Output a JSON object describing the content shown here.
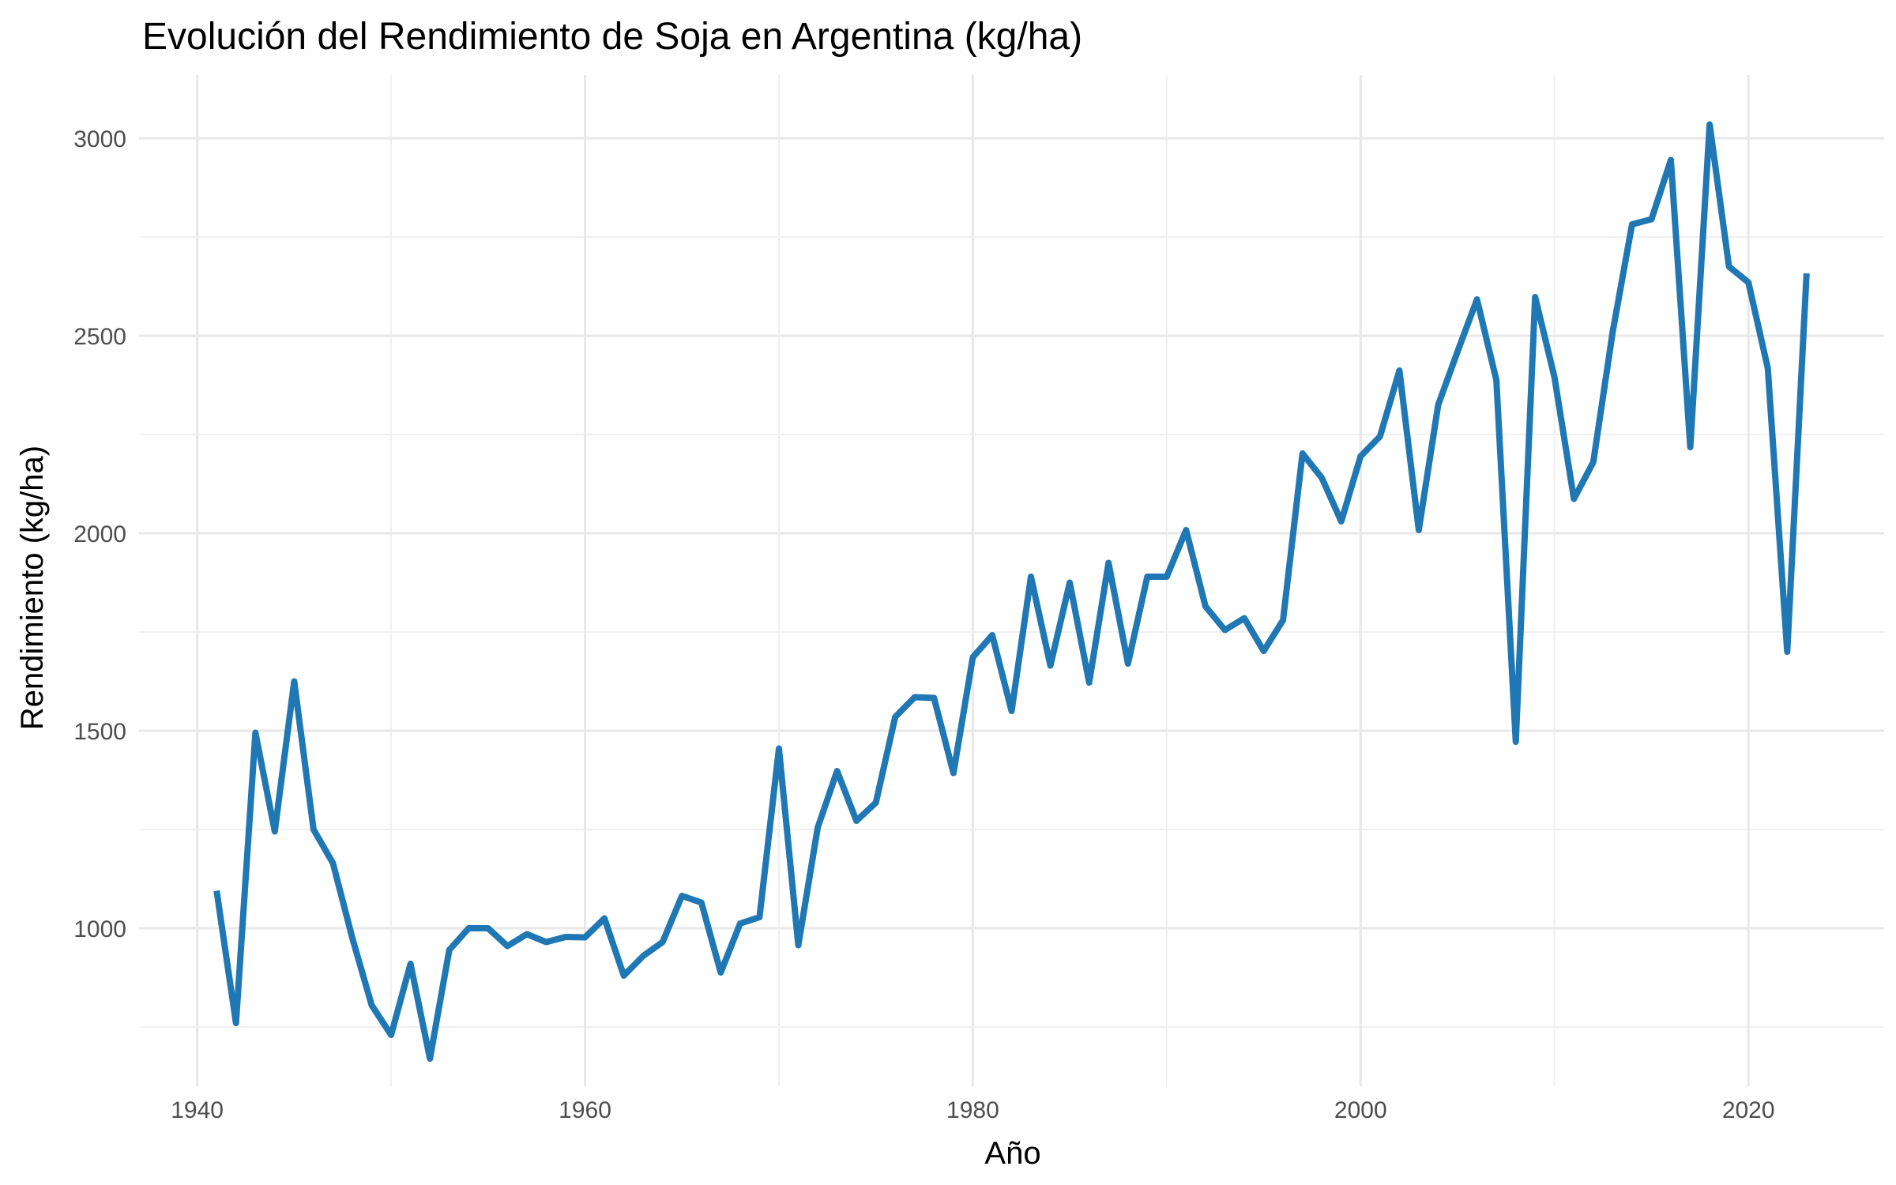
{
  "chart_data": {
    "type": "line",
    "title": "Evolución del Rendimiento de Soja en Argentina (kg/ha)",
    "xlabel": "Año",
    "ylabel": "Rendimiento (kg/ha)",
    "xlim": [
      1937,
      2027
    ],
    "ylim": [
      600,
      3160
    ],
    "x_ticks": [
      1940,
      1960,
      1980,
      2000,
      2020
    ],
    "y_ticks": [
      1000,
      1500,
      2000,
      2500,
      3000
    ],
    "grid": true,
    "line_color": "#1f77b4",
    "series": [
      {
        "x": [
          1941,
          1942,
          1943,
          1944,
          1945,
          1946,
          1947,
          1948,
          1949,
          1950,
          1951,
          1952,
          1953,
          1954,
          1955,
          1956,
          1957,
          1958,
          1959,
          1960,
          1961,
          1962,
          1963,
          1964,
          1965,
          1966,
          1967,
          1968,
          1969,
          1970,
          1971,
          1972,
          1973,
          1974,
          1975,
          1976,
          1977,
          1978,
          1979,
          1980,
          1981,
          1982,
          1983,
          1984,
          1985,
          1986,
          1987,
          1988,
          1989,
          1990,
          1991,
          1992,
          1993,
          1994,
          1995,
          1996,
          1997,
          1998,
          1999,
          2000,
          2001,
          2002,
          2003,
          2004,
          2005,
          2006,
          2007,
          2008,
          2009,
          2010,
          2011,
          2012,
          2013,
          2014,
          2015,
          2016,
          2017,
          2018,
          2019,
          2020,
          2021,
          2022,
          2023
        ],
        "values": [
          1095,
          760,
          1495,
          1245,
          1625,
          1250,
          1165,
          975,
          805,
          730,
          910,
          670,
          945,
          1000,
          1000,
          955,
          985,
          965,
          978,
          977,
          1025,
          880,
          930,
          965,
          1082,
          1065,
          888,
          1012,
          1028,
          1455,
          957,
          1255,
          1398,
          1272,
          1318,
          1535,
          1585,
          1583,
          1393,
          1686,
          1742,
          1550,
          1890,
          1665,
          1875,
          1622,
          1925,
          1670,
          1890,
          1890,
          2008,
          1815,
          1755,
          1785,
          1702,
          1780,
          2202,
          2140,
          2030,
          2195,
          2245,
          2412,
          2008,
          2325,
          2460,
          2592,
          2388,
          1472,
          2598,
          2395,
          2087,
          2180,
          2510,
          2782,
          2795,
          2945,
          2218,
          3035,
          2675,
          2635,
          2418,
          1700,
          2658
        ]
      }
    ]
  }
}
